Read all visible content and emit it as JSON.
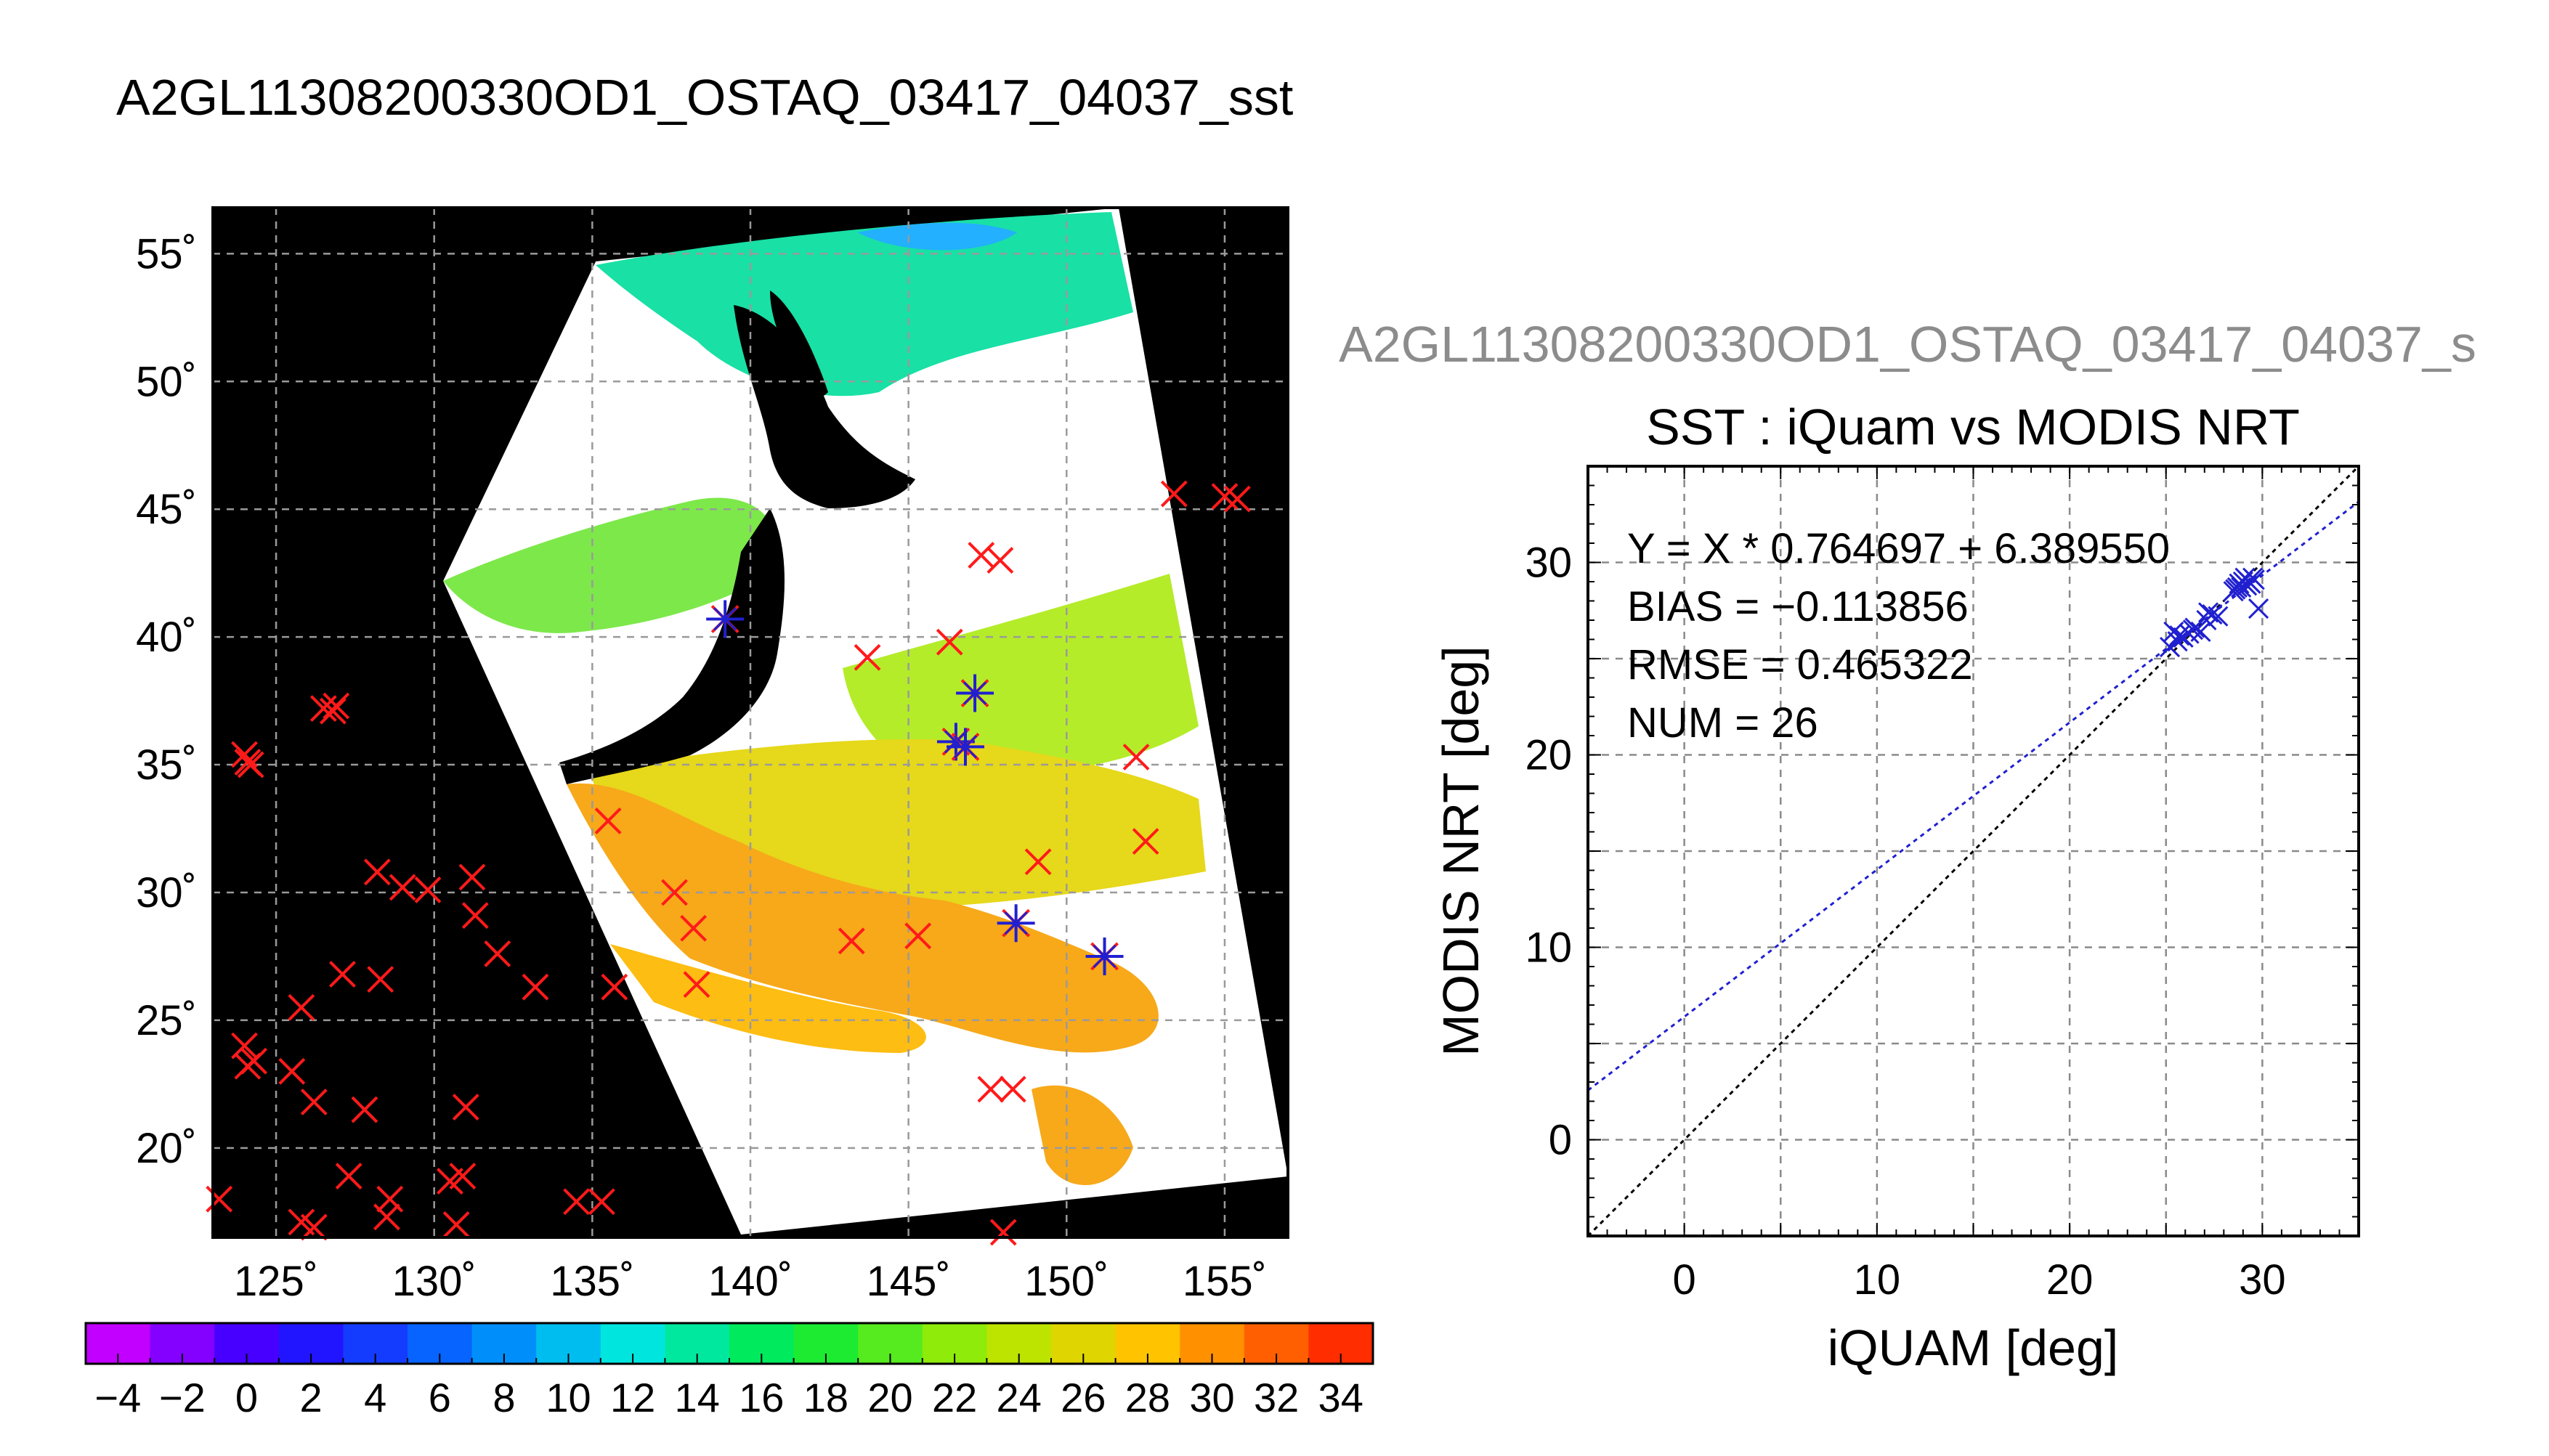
{
  "page": {
    "left_title": "A2GL11308200330OD1_OSTAQ_03417_04037_sst",
    "right_title": "A2GL11308200330OD1_OSTAQ_03417_04037_s"
  },
  "chart_data": [
    {
      "type": "map",
      "xticks": [
        "125˚",
        "130˚",
        "135˚",
        "140˚",
        "145˚",
        "150˚",
        "155˚"
      ],
      "yticks": [
        "20˚",
        "25˚",
        "30˚",
        "35˚",
        "40˚",
        "45˚",
        "50˚",
        "55˚"
      ],
      "xlim": [
        123,
        157
      ],
      "ylim": [
        16.5,
        56.8
      ],
      "colorbar": {
        "min": -5,
        "max": 35,
        "labels": [
          "−4",
          "−2",
          "0",
          "2",
          "4",
          "6",
          "8",
          "10",
          "12",
          "14",
          "16",
          "18",
          "20",
          "22",
          "24",
          "26",
          "28",
          "30",
          "32",
          "34"
        ],
        "label_values": [
          -4,
          -2,
          0,
          2,
          4,
          6,
          8,
          10,
          12,
          14,
          16,
          18,
          20,
          22,
          24,
          26,
          28,
          30,
          32,
          34
        ]
      },
      "red_markers": [
        [
          123.2,
          18.0
        ],
        [
          124.0,
          24.0
        ],
        [
          124.1,
          23.2
        ],
        [
          124.3,
          23.4
        ],
        [
          124.0,
          35.4
        ],
        [
          124.1,
          35.1
        ],
        [
          124.2,
          35.0
        ],
        [
          125.5,
          23.0
        ],
        [
          125.8,
          25.5
        ],
        [
          125.8,
          17.1
        ],
        [
          126.2,
          16.9
        ],
        [
          126.2,
          21.8
        ],
        [
          126.5,
          37.2
        ],
        [
          126.8,
          37.1
        ],
        [
          126.9,
          37.3
        ],
        [
          127.1,
          26.8
        ],
        [
          127.3,
          18.9
        ],
        [
          127.8,
          21.5
        ],
        [
          128.2,
          30.8
        ],
        [
          128.3,
          26.6
        ],
        [
          128.6,
          18.0
        ],
        [
          128.5,
          17.3
        ],
        [
          129.0,
          30.2
        ],
        [
          129.8,
          30.1
        ],
        [
          130.5,
          18.7
        ],
        [
          130.9,
          18.9
        ],
        [
          130.7,
          17.0
        ],
        [
          131.0,
          21.6
        ],
        [
          131.2,
          30.6
        ],
        [
          131.3,
          29.1
        ],
        [
          132.0,
          27.6
        ],
        [
          133.2,
          26.3
        ],
        [
          134.5,
          17.9
        ],
        [
          135.3,
          17.9
        ],
        [
          135.5,
          32.8
        ],
        [
          135.7,
          26.3
        ],
        [
          137.6,
          30.0
        ],
        [
          138.2,
          28.6
        ],
        [
          138.3,
          26.4
        ],
        [
          143.2,
          28.1
        ],
        [
          143.7,
          39.2
        ],
        [
          145.3,
          28.3
        ],
        [
          146.3,
          39.8
        ],
        [
          147.3,
          43.2
        ],
        [
          147.9,
          43.0
        ],
        [
          147.6,
          22.3
        ],
        [
          148.3,
          22.3
        ],
        [
          149.1,
          31.2
        ],
        [
          152.2,
          35.3
        ],
        [
          152.5,
          32.0
        ],
        [
          153.4,
          45.6
        ],
        [
          155.0,
          45.5
        ],
        [
          155.4,
          45.4
        ],
        [
          148.0,
          16.7
        ]
      ],
      "star_markers": [
        [
          139.2,
          40.7
        ],
        [
          147.1,
          37.8
        ],
        [
          146.5,
          35.9
        ],
        [
          146.8,
          35.7
        ],
        [
          148.4,
          28.8
        ],
        [
          151.2,
          27.5
        ]
      ]
    },
    {
      "type": "scatter",
      "title": "SST : iQuam vs MODIS NRT",
      "xlabel": "iQUAM [deg]",
      "ylabel": "MODIS NRT [deg]",
      "xlim": [
        -5,
        35
      ],
      "ylim": [
        -5,
        35
      ],
      "xticks": [
        "0",
        "10",
        "20",
        "30"
      ],
      "yticks": [
        "0",
        "10",
        "20",
        "30"
      ],
      "tick_values": [
        0,
        10,
        20,
        30
      ],
      "minor_grid": [
        -5,
        0,
        5,
        10,
        15,
        20,
        25,
        30,
        35
      ],
      "grid": true,
      "stats": {
        "fit": "Y = X * 0.764697 + 6.389550",
        "bias": "BIAS = −0.113856",
        "rmse": "RMSE = 0.465322",
        "num": "NUM = 26"
      },
      "fit_line": {
        "slope": 0.764697,
        "intercept": 6.38955
      },
      "points": [
        [
          25.2,
          25.6
        ],
        [
          25.4,
          26.4
        ],
        [
          25.6,
          25.9
        ],
        [
          25.9,
          26.1
        ],
        [
          26.2,
          26.3
        ],
        [
          26.5,
          26.6
        ],
        [
          26.8,
          26.4
        ],
        [
          27.1,
          27.0
        ],
        [
          27.4,
          27.3
        ],
        [
          27.7,
          27.2
        ],
        [
          28.6,
          28.6
        ],
        [
          28.8,
          28.9
        ],
        [
          28.9,
          28.7
        ],
        [
          29.0,
          29.0
        ],
        [
          29.2,
          28.8
        ],
        [
          29.4,
          28.9
        ],
        [
          29.6,
          29.1
        ],
        [
          29.8,
          27.6
        ],
        [
          28.7,
          28.7
        ],
        [
          29.1,
          29.2
        ],
        [
          25.7,
          26.2
        ],
        [
          26.4,
          26.5
        ],
        [
          27.2,
          27.4
        ],
        [
          28.5,
          28.5
        ],
        [
          29.3,
          29.0
        ],
        [
          29.5,
          29.2
        ]
      ]
    }
  ]
}
